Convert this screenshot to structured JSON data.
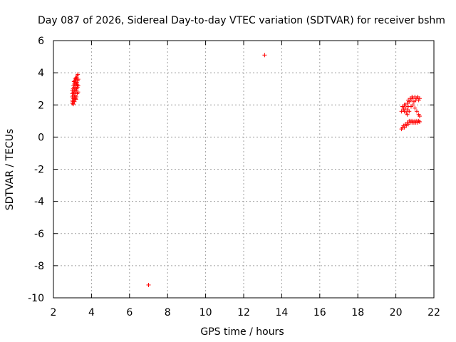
{
  "chart_data": {
    "type": "scatter",
    "title": "Day 087 of 2026, Sidereal Day-to-day VTEC variation (SDTVAR) for receiver bshm",
    "xlabel": "GPS time / hours",
    "ylabel": "SDTVAR / TECUs",
    "xlim": [
      2,
      22
    ],
    "ylim": [
      -10,
      6
    ],
    "xticks": [
      2,
      4,
      6,
      8,
      10,
      12,
      14,
      16,
      18,
      20,
      22
    ],
    "yticks": [
      -10,
      -8,
      -6,
      -4,
      -2,
      0,
      2,
      4,
      6
    ],
    "grid": true,
    "marker": "+",
    "series_color": "#ff0000",
    "series": [
      {
        "name": "SDTVAR",
        "points": [
          [
            3.0,
            2.1
          ],
          [
            3.0,
            2.3
          ],
          [
            3.0,
            2.5
          ],
          [
            3.0,
            2.7
          ],
          [
            3.0,
            2.9
          ],
          [
            3.02,
            2.2
          ],
          [
            3.03,
            2.6
          ],
          [
            3.04,
            3.0
          ],
          [
            3.05,
            2.4
          ],
          [
            3.05,
            2.8
          ],
          [
            3.06,
            3.2
          ],
          [
            3.07,
            2.3
          ],
          [
            3.08,
            2.7
          ],
          [
            3.09,
            3.1
          ],
          [
            3.1,
            2.2
          ],
          [
            3.1,
            2.5
          ],
          [
            3.1,
            2.9
          ],
          [
            3.1,
            3.3
          ],
          [
            3.12,
            3.5
          ],
          [
            3.13,
            2.6
          ],
          [
            3.14,
            3.0
          ],
          [
            3.15,
            3.4
          ],
          [
            3.16,
            2.4
          ],
          [
            3.17,
            2.8
          ],
          [
            3.18,
            3.2
          ],
          [
            3.19,
            3.6
          ],
          [
            3.2,
            2.5
          ],
          [
            3.2,
            2.9
          ],
          [
            3.2,
            3.3
          ],
          [
            3.21,
            3.7
          ],
          [
            3.22,
            3.0
          ],
          [
            3.23,
            3.4
          ],
          [
            3.24,
            3.8
          ],
          [
            3.25,
            2.7
          ],
          [
            3.26,
            3.1
          ],
          [
            3.27,
            3.5
          ],
          [
            3.28,
            3.9
          ],
          [
            3.29,
            2.8
          ],
          [
            3.3,
            3.2
          ],
          [
            3.3,
            3.6
          ],
          [
            3.05,
            2.05
          ],
          [
            3.15,
            3.65
          ],
          [
            3.25,
            3.25
          ],
          [
            3.08,
            3.45
          ],
          [
            3.18,
            2.35
          ],
          [
            7.0,
            -9.2
          ],
          [
            13.1,
            5.1
          ],
          [
            20.3,
            1.6
          ],
          [
            20.35,
            1.9
          ],
          [
            20.4,
            1.7
          ],
          [
            20.45,
            2.0
          ],
          [
            20.5,
            1.8
          ],
          [
            20.55,
            1.5
          ],
          [
            20.6,
            2.1
          ],
          [
            20.65,
            2.3
          ],
          [
            20.7,
            2.2
          ],
          [
            20.75,
            2.4
          ],
          [
            20.8,
            2.3
          ],
          [
            20.85,
            2.5
          ],
          [
            20.9,
            2.4
          ],
          [
            20.95,
            2.2
          ],
          [
            21.0,
            2.5
          ],
          [
            21.05,
            2.3
          ],
          [
            21.1,
            2.4
          ],
          [
            21.15,
            2.5
          ],
          [
            21.2,
            2.3
          ],
          [
            21.25,
            2.4
          ],
          [
            20.6,
            1.4
          ],
          [
            20.7,
            1.6
          ],
          [
            20.8,
            1.9
          ],
          [
            20.9,
            2.0
          ],
          [
            21.0,
            1.8
          ],
          [
            21.1,
            1.6
          ],
          [
            21.2,
            1.4
          ],
          [
            21.25,
            1.3
          ],
          [
            20.3,
            0.5
          ],
          [
            20.35,
            0.6
          ],
          [
            20.4,
            0.7
          ],
          [
            20.45,
            0.6
          ],
          [
            20.5,
            0.8
          ],
          [
            20.55,
            0.7
          ],
          [
            20.6,
            0.9
          ],
          [
            20.65,
            0.8
          ],
          [
            20.7,
            1.0
          ],
          [
            20.75,
            0.9
          ],
          [
            20.8,
            1.0
          ],
          [
            20.85,
            0.9
          ],
          [
            20.9,
            1.0
          ],
          [
            20.95,
            0.9
          ],
          [
            21.0,
            1.0
          ],
          [
            21.05,
            0.9
          ],
          [
            21.1,
            1.0
          ],
          [
            21.15,
            0.9
          ],
          [
            21.2,
            1.0
          ],
          [
            21.25,
            0.95
          ],
          [
            20.4,
            1.8
          ],
          [
            20.45,
            1.6
          ],
          [
            20.5,
            2.0
          ],
          [
            20.6,
            1.7
          ],
          [
            20.65,
            1.9
          ]
        ]
      }
    ]
  }
}
